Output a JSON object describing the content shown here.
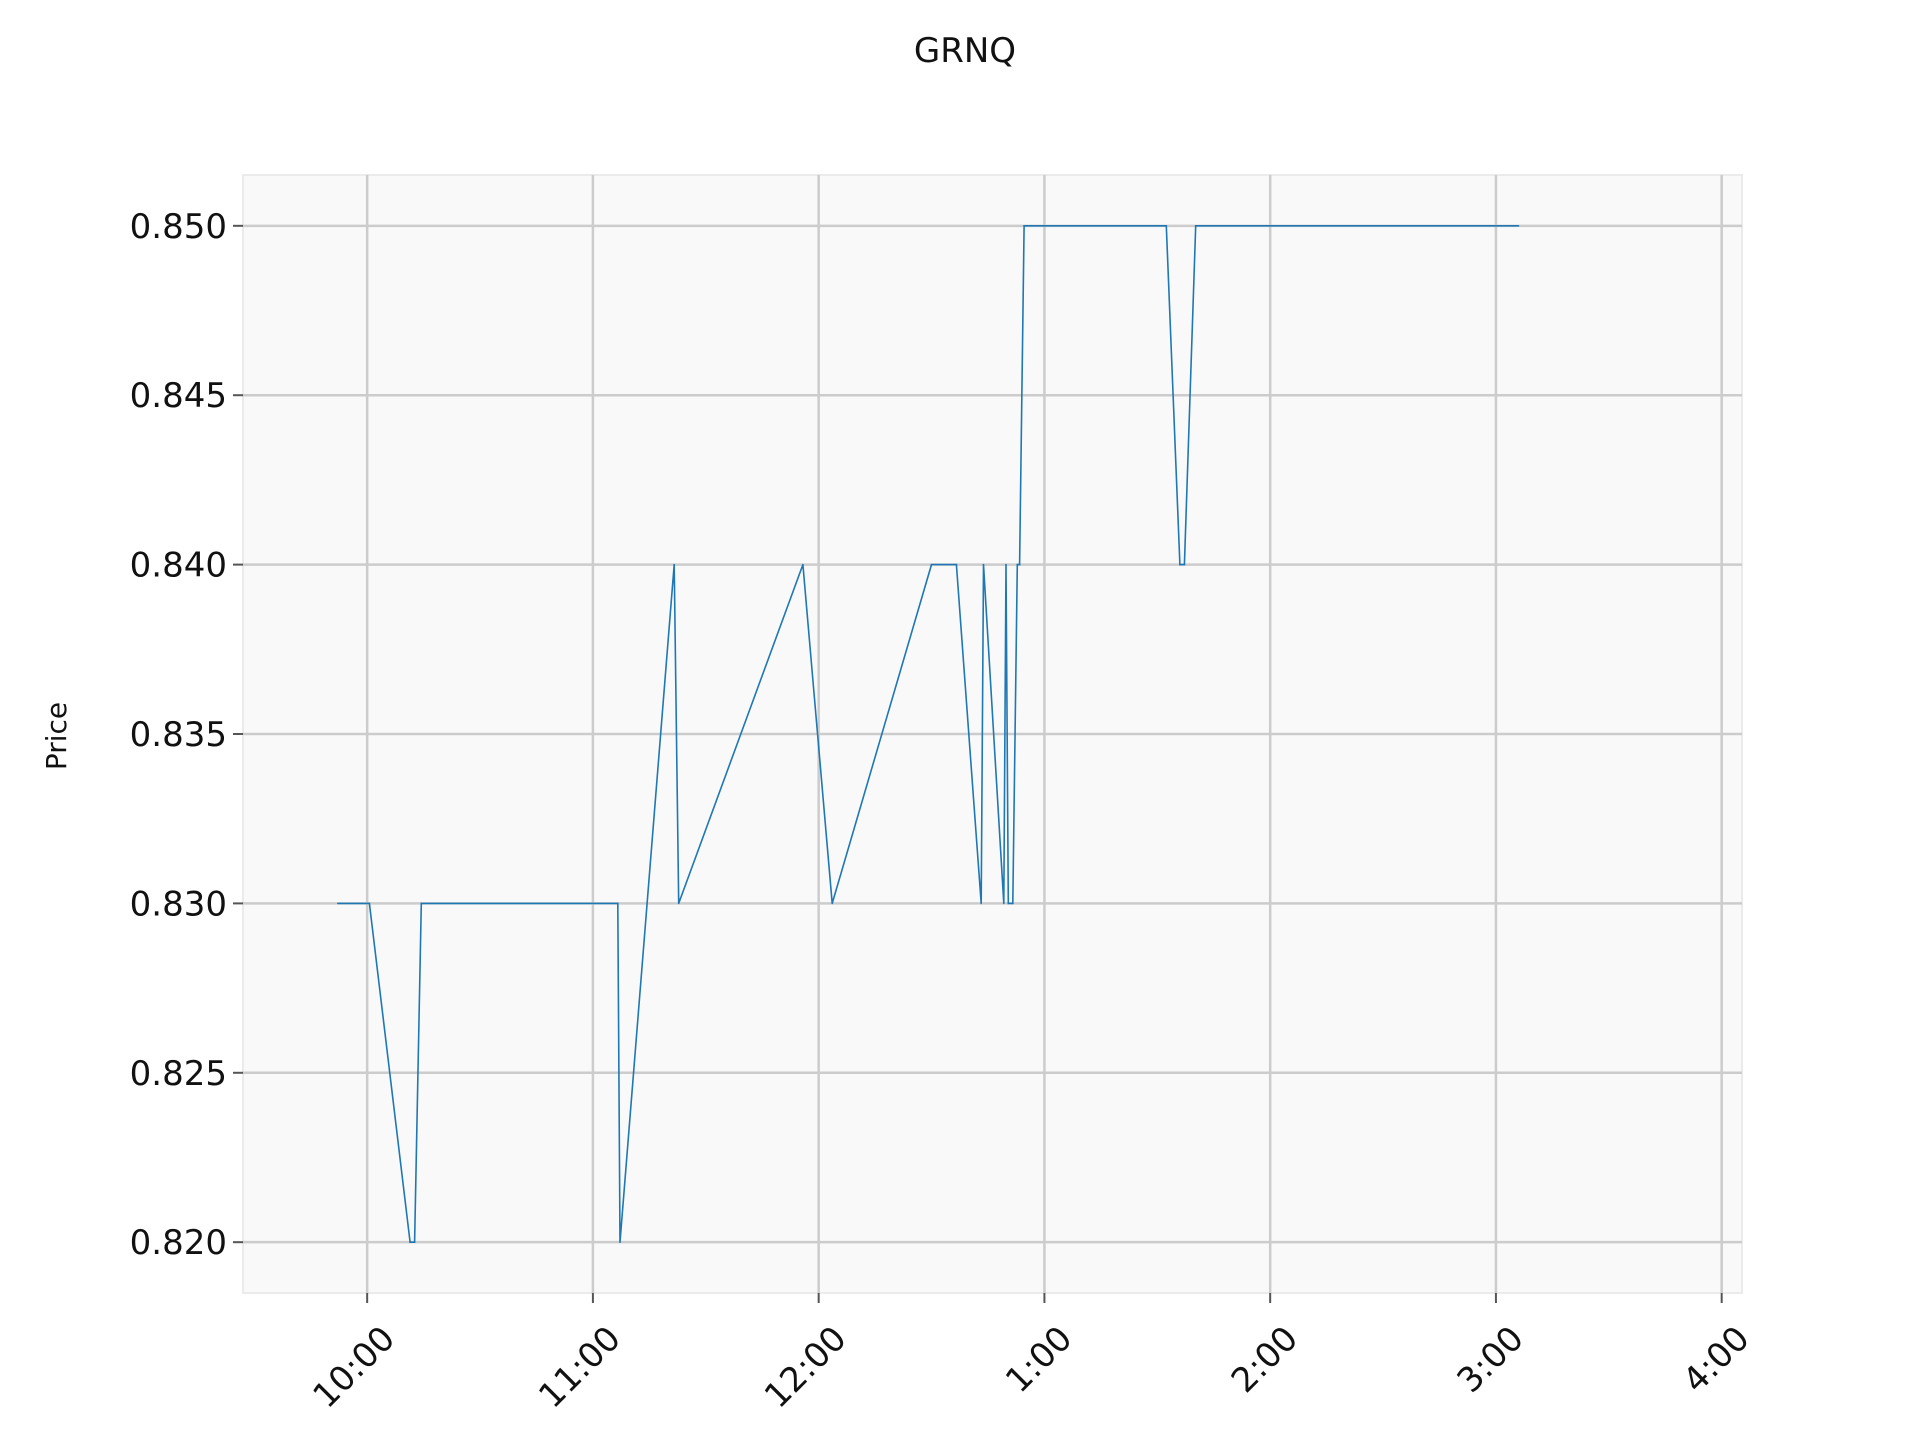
{
  "chart_data": {
    "type": "line",
    "title": "GRNQ",
    "xlabel": "",
    "ylabel": "Price",
    "x_unit": "hours after 9:00",
    "xlim": [
      0.45,
      7.09
    ],
    "ylim": [
      0.8185,
      0.8515
    ],
    "grid": true,
    "x_ticks": [
      {
        "value": 1,
        "label": "10:00"
      },
      {
        "value": 2,
        "label": "11:00"
      },
      {
        "value": 3,
        "label": "12:00"
      },
      {
        "value": 4,
        "label": "1:00"
      },
      {
        "value": 5,
        "label": "2:00"
      },
      {
        "value": 6,
        "label": "3:00"
      },
      {
        "value": 7,
        "label": "4:00"
      }
    ],
    "y_ticks": [
      {
        "value": 0.82,
        "label": "0.820"
      },
      {
        "value": 0.825,
        "label": "0.825"
      },
      {
        "value": 0.83,
        "label": "0.830"
      },
      {
        "value": 0.835,
        "label": "0.835"
      },
      {
        "value": 0.84,
        "label": "0.840"
      },
      {
        "value": 0.845,
        "label": "0.845"
      },
      {
        "value": 0.85,
        "label": "0.850"
      }
    ],
    "series": [
      {
        "name": "GRNQ",
        "color": "#1f77b4",
        "x": [
          0.87,
          1.01,
          1.19,
          1.21,
          1.24,
          2.11,
          2.12,
          2.36,
          2.38,
          2.93,
          3.06,
          3.5,
          3.61,
          3.72,
          3.73,
          3.82,
          3.83,
          3.84,
          3.86,
          3.88,
          3.89,
          3.91,
          3.92,
          4.54,
          4.6,
          4.62,
          4.67,
          6.1
        ],
        "y": [
          0.83,
          0.83,
          0.82,
          0.82,
          0.83,
          0.83,
          0.82,
          0.84,
          0.83,
          0.84,
          0.83,
          0.84,
          0.84,
          0.83,
          0.84,
          0.83,
          0.84,
          0.83,
          0.83,
          0.84,
          0.84,
          0.85,
          0.85,
          0.85,
          0.84,
          0.84,
          0.85,
          0.85
        ]
      }
    ]
  }
}
